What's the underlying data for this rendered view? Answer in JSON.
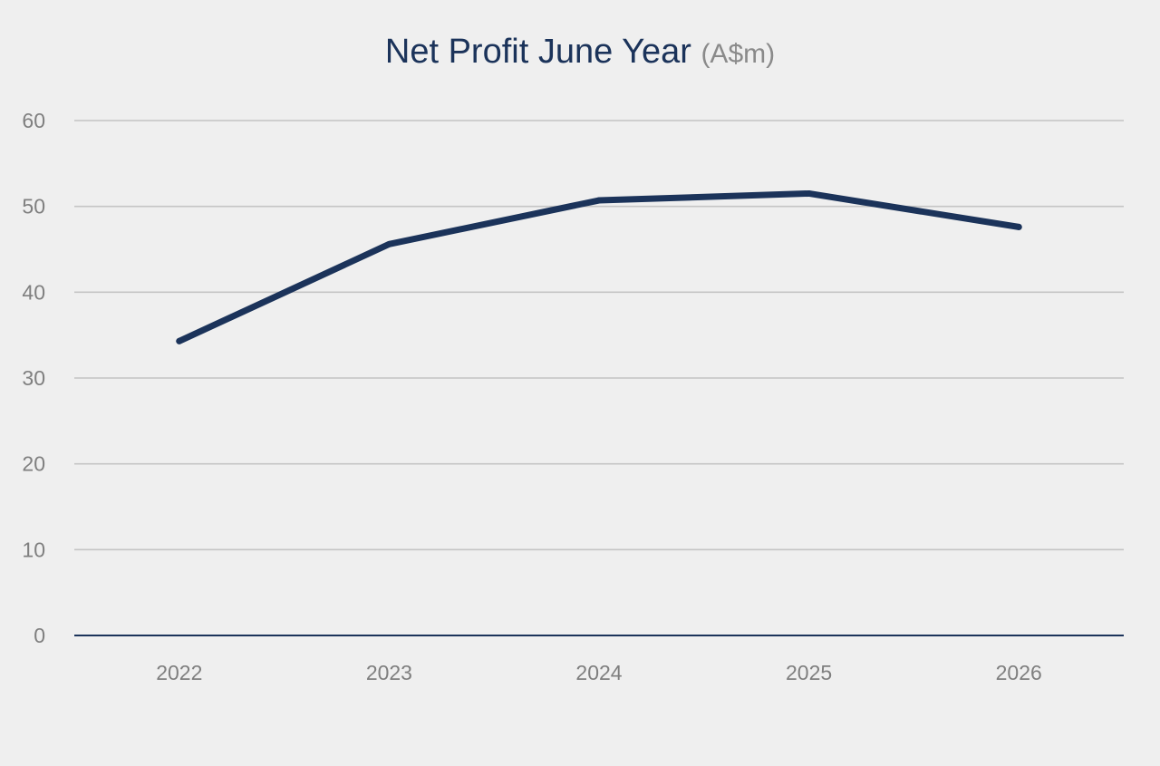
{
  "chart_data": {
    "type": "line",
    "title": "Net Profit June Year",
    "title_unit": "(A$m)",
    "xlabel": "",
    "ylabel": "",
    "categories": [
      "2022",
      "2023",
      "2024",
      "2025",
      "2026"
    ],
    "series": [
      {
        "values": [
          34.3,
          45.6,
          50.7,
          51.5,
          47.6
        ]
      }
    ],
    "ylim": [
      0,
      60
    ],
    "yticks": [
      0,
      10,
      20,
      30,
      40,
      50,
      60
    ],
    "grid": true,
    "legend": "none",
    "colors": {
      "line": "#1b335a",
      "grid": "#c4c4c4",
      "axis": "#1b335a",
      "title": "#1b335a",
      "unit": "#8a8a8a",
      "tick_text": "#7f7f7f",
      "background": "#efefef"
    }
  }
}
